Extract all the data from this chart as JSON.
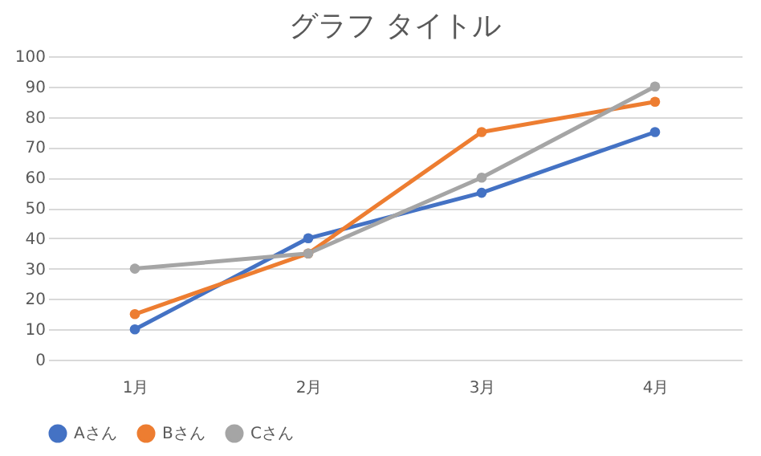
{
  "chart_data": {
    "type": "line",
    "title": "グラフ タイトル",
    "categories": [
      "1月",
      "2月",
      "3月",
      "4月"
    ],
    "series": [
      {
        "name": "Aさん",
        "color": "#4472c4",
        "values": [
          10,
          40,
          55,
          75
        ]
      },
      {
        "name": "Bさん",
        "color": "#ed7d31",
        "values": [
          15,
          35,
          75,
          85
        ]
      },
      {
        "name": "Cさん",
        "color": "#a5a5a5",
        "values": [
          30,
          35,
          60,
          90
        ]
      }
    ],
    "ylim": [
      0,
      100
    ],
    "yticks": [
      0,
      10,
      20,
      30,
      40,
      50,
      60,
      70,
      80,
      90,
      100
    ],
    "grid": "y",
    "legend": "bottom",
    "marker": "circle",
    "line_style": "solid"
  }
}
